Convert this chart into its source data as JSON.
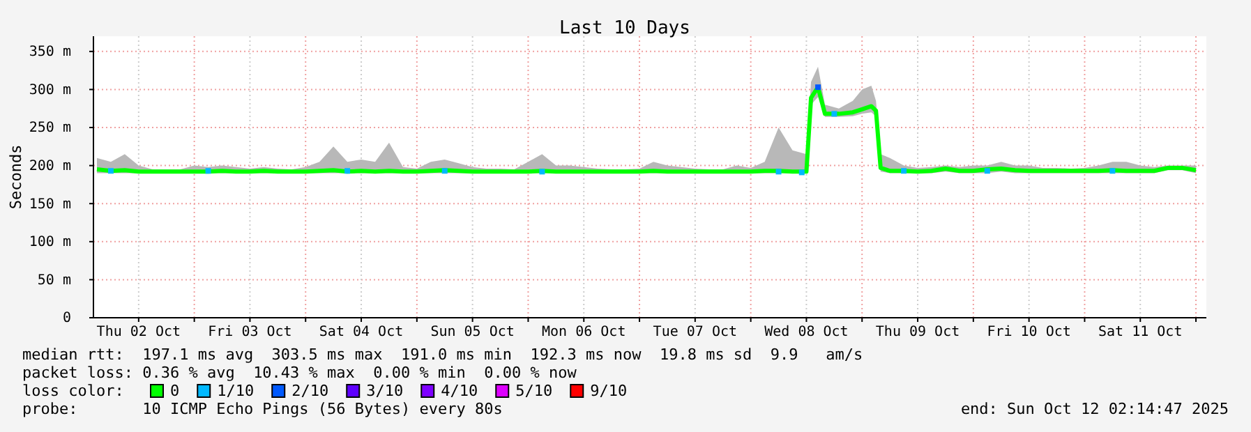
{
  "chart_data": {
    "type": "line",
    "title": "Last 10 Days",
    "ylabel": "Seconds",
    "legend_title": "loss color:",
    "legend": "bottom",
    "grid": true,
    "xlim": [
      "2025-10-02T02:15",
      "2025-10-12T02:15"
    ],
    "xticks": [
      {
        "value": "2025-10-02T12:00",
        "label": "Thu 02 Oct"
      },
      {
        "value": "2025-10-03T00:00",
        "label": null
      },
      {
        "value": "2025-10-03T12:00",
        "label": "Fri 03 Oct"
      },
      {
        "value": "2025-10-04T00:00",
        "label": null
      },
      {
        "value": "2025-10-04T12:00",
        "label": "Sat 04 Oct"
      },
      {
        "value": "2025-10-05T00:00",
        "label": null
      },
      {
        "value": "2025-10-05T12:00",
        "label": "Sun 05 Oct"
      },
      {
        "value": "2025-10-06T00:00",
        "label": null
      },
      {
        "value": "2025-10-06T12:00",
        "label": "Mon 06 Oct"
      },
      {
        "value": "2025-10-07T00:00",
        "label": null
      },
      {
        "value": "2025-10-07T12:00",
        "label": "Tue 07 Oct"
      },
      {
        "value": "2025-10-08T00:00",
        "label": null
      },
      {
        "value": "2025-10-08T12:00",
        "label": "Wed 08 Oct"
      },
      {
        "value": "2025-10-09T00:00",
        "label": null
      },
      {
        "value": "2025-10-09T12:00",
        "label": "Thu 09 Oct"
      },
      {
        "value": "2025-10-10T00:00",
        "label": null
      },
      {
        "value": "2025-10-10T12:00",
        "label": "Fri 10 Oct"
      },
      {
        "value": "2025-10-11T00:00",
        "label": null
      },
      {
        "value": "2025-10-11T12:00",
        "label": "Sat 11 Oct"
      },
      {
        "value": "2025-10-12T00:00",
        "label": null
      }
    ],
    "ylim": [
      0,
      370
    ],
    "yticks": [
      {
        "value": 0,
        "label": "0"
      },
      {
        "value": 50,
        "label": "50 m"
      },
      {
        "value": 100,
        "label": "100 m"
      },
      {
        "value": 150,
        "label": "150 m"
      },
      {
        "value": 200,
        "label": "200 m"
      },
      {
        "value": 250,
        "label": "250 m"
      },
      {
        "value": 300,
        "label": "300 m"
      },
      {
        "value": 350,
        "label": "350 m"
      }
    ],
    "series": [
      {
        "name": "0",
        "color": "#00ff00",
        "x": [
          "2025-10-02T03:00",
          "2025-10-02T06:00",
          "2025-10-02T09:00",
          "2025-10-02T12:00",
          "2025-10-02T15:00",
          "2025-10-02T18:00",
          "2025-10-02T21:00",
          "2025-10-03T00:00",
          "2025-10-03T03:00",
          "2025-10-03T06:00",
          "2025-10-03T09:00",
          "2025-10-03T12:00",
          "2025-10-03T15:00",
          "2025-10-03T18:00",
          "2025-10-03T21:00",
          "2025-10-04T00:00",
          "2025-10-04T03:00",
          "2025-10-04T06:00",
          "2025-10-04T09:00",
          "2025-10-04T12:00",
          "2025-10-04T15:00",
          "2025-10-04T18:00",
          "2025-10-04T21:00",
          "2025-10-05T00:00",
          "2025-10-05T03:00",
          "2025-10-05T06:00",
          "2025-10-05T09:00",
          "2025-10-05T12:00",
          "2025-10-05T15:00",
          "2025-10-05T18:00",
          "2025-10-05T21:00",
          "2025-10-06T00:00",
          "2025-10-06T03:00",
          "2025-10-06T06:00",
          "2025-10-06T09:00",
          "2025-10-06T12:00",
          "2025-10-06T15:00",
          "2025-10-06T18:00",
          "2025-10-06T21:00",
          "2025-10-07T00:00",
          "2025-10-07T03:00",
          "2025-10-07T06:00",
          "2025-10-07T09:00",
          "2025-10-07T12:00",
          "2025-10-07T15:00",
          "2025-10-07T18:00",
          "2025-10-07T21:00",
          "2025-10-08T00:00",
          "2025-10-08T03:00",
          "2025-10-08T06:00",
          "2025-10-08T09:00",
          "2025-10-08T12:00",
          "2025-10-08T13:00",
          "2025-10-08T14:30",
          "2025-10-08T16:00",
          "2025-10-08T19:00",
          "2025-10-08T22:00",
          "2025-10-09T00:00",
          "2025-10-09T02:00",
          "2025-10-09T03:00",
          "2025-10-09T04:00",
          "2025-10-09T06:00",
          "2025-10-09T09:00",
          "2025-10-09T12:00",
          "2025-10-09T15:00",
          "2025-10-09T18:00",
          "2025-10-09T21:00",
          "2025-10-10T00:00",
          "2025-10-10T03:00",
          "2025-10-10T06:00",
          "2025-10-10T09:00",
          "2025-10-10T12:00",
          "2025-10-10T15:00",
          "2025-10-10T18:00",
          "2025-10-10T21:00",
          "2025-10-11T00:00",
          "2025-10-11T03:00",
          "2025-10-11T06:00",
          "2025-10-11T09:00",
          "2025-10-11T12:00",
          "2025-10-11T15:00",
          "2025-10-11T18:00",
          "2025-10-11T21:00",
          "2025-10-12T00:00"
        ],
        "values": [
          195,
          193,
          194,
          192,
          192,
          192,
          192,
          192,
          192,
          193,
          192,
          192,
          193,
          192,
          192,
          192,
          193,
          194,
          192,
          193,
          192,
          193,
          192,
          192,
          193,
          194,
          193,
          192,
          192,
          192,
          192,
          192,
          193,
          192,
          192,
          192,
          192,
          192,
          192,
          192,
          193,
          192,
          192,
          192,
          192,
          192,
          192,
          192,
          193,
          193,
          192,
          192,
          289,
          303,
          268,
          268,
          270,
          274,
          278,
          272,
          197,
          193,
          193,
          192,
          193,
          196,
          193,
          193,
          195,
          196,
          194,
          193,
          193,
          193,
          193,
          193,
          193,
          194,
          193,
          193,
          193,
          197,
          197,
          194
        ],
        "lower": [
          190,
          190,
          190,
          190,
          190,
          190,
          190,
          190,
          190,
          190,
          190,
          190,
          190,
          190,
          190,
          190,
          190,
          190,
          190,
          190,
          190,
          190,
          190,
          190,
          190,
          190,
          190,
          190,
          190,
          190,
          190,
          190,
          190,
          190,
          190,
          190,
          190,
          190,
          190,
          190,
          190,
          190,
          190,
          190,
          190,
          190,
          190,
          190,
          190,
          190,
          190,
          190,
          280,
          290,
          264,
          264,
          265,
          268,
          270,
          265,
          192,
          190,
          190,
          190,
          190,
          192,
          190,
          190,
          190,
          192,
          190,
          190,
          190,
          190,
          190,
          190,
          190,
          190,
          190,
          190,
          190,
          194,
          194,
          190
        ],
        "upper": [
          210,
          205,
          215,
          200,
          195,
          195,
          195,
          200,
          198,
          200,
          198,
          196,
          198,
          196,
          195,
          198,
          205,
          225,
          205,
          208,
          205,
          230,
          198,
          196,
          205,
          208,
          203,
          198,
          196,
          196,
          195,
          205,
          215,
          200,
          200,
          198,
          196,
          195,
          195,
          196,
          205,
          200,
          198,
          196,
          195,
          195,
          200,
          197,
          205,
          250,
          220,
          215,
          310,
          330,
          280,
          275,
          285,
          300,
          305,
          285,
          215,
          210,
          200,
          197,
          198,
          200,
          198,
          200,
          200,
          205,
          200,
          200,
          197,
          197,
          196,
          197,
          200,
          205,
          205,
          200,
          198,
          200,
          200,
          200
        ]
      },
      {
        "name": "1/10",
        "color": "#00b8ff",
        "type": "scatter",
        "marker": "square",
        "x": [
          "2025-10-02T06:00",
          "2025-10-03T03:00",
          "2025-10-04T09:00",
          "2025-10-05T06:00",
          "2025-10-06T03:00",
          "2025-10-08T06:00",
          "2025-10-08T11:00",
          "2025-10-08T18:00",
          "2025-10-09T09:00",
          "2025-10-10T03:00",
          "2025-10-11T06:00"
        ],
        "values": [
          193,
          193,
          193,
          193,
          192,
          192,
          191,
          268,
          193,
          193,
          193
        ]
      },
      {
        "name": "2/10",
        "color": "#0059ff",
        "type": "scatter",
        "marker": "square",
        "x": [
          "2025-10-08T14:30"
        ],
        "values": [
          303
        ]
      },
      {
        "name": "3/10",
        "color": "#5e00ff",
        "type": "scatter",
        "marker": "square"
      },
      {
        "name": "4/10",
        "color": "#7e00ff",
        "type": "scatter",
        "marker": "square"
      },
      {
        "name": "5/10",
        "color": "#dd00ff",
        "type": "scatter",
        "marker": "square"
      },
      {
        "name": "9/10",
        "color": "#ff0000",
        "type": "scatter",
        "marker": "square"
      }
    ],
    "annotations": [
      "median rtt:  197.1 ms avg  303.5 ms max  191.0 ms min  192.3 ms now  19.8 ms sd  9.9   am/s",
      "packet loss: 0.36 % avg  10.43 % max  0.00 % min  0.00 % now",
      "probe:       10 ICMP Echo Pings (56 Bytes) every 80s",
      "end: Sun Oct 12 02:14:47 2025"
    ]
  }
}
